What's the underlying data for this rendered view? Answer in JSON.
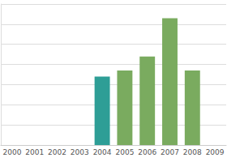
{
  "chart_data": {
    "type": "bar",
    "categories": [
      "2000",
      "2001",
      "2002",
      "2003",
      "2004",
      "2005",
      "2006",
      "2007",
      "2008",
      "2009"
    ],
    "values": [
      null,
      null,
      null,
      null,
      3.4,
      3.7,
      4.4,
      6.3,
      3.7,
      null
    ],
    "colors": [
      "#7aab5f",
      "#7aab5f",
      "#7aab5f",
      "#7aab5f",
      "#2e9e96",
      "#7aab5f",
      "#7aab5f",
      "#7aab5f",
      "#7aab5f",
      "#7aab5f"
    ],
    "ylim": [
      0,
      7
    ],
    "yticks": [
      0,
      1,
      2,
      3,
      4,
      5,
      6,
      7
    ],
    "grid": true,
    "tick_labels": "x"
  }
}
